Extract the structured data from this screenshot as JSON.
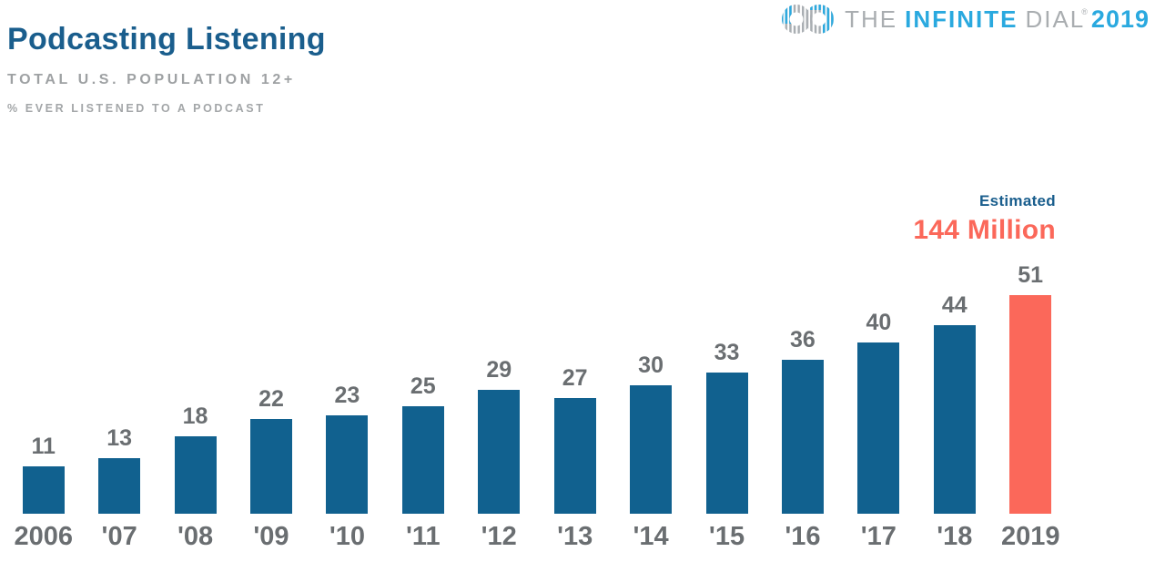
{
  "header": {
    "title": "Podcasting Listening",
    "subtitle": "TOTAL U.S. POPULATION 12+",
    "note": "% EVER LISTENED TO A PODCAST"
  },
  "logo": {
    "word_the": "THE",
    "word_infinite": "INFINITE",
    "word_dial": "DIAL",
    "registered": "®",
    "year": "2019",
    "accent_color": "#2AA9DF",
    "gray_color": "#A9ADB0"
  },
  "annotation": {
    "label": "Estimated",
    "value": "144 Million",
    "label_color": "#1A5E8D",
    "value_color": "#FB685A"
  },
  "chart_data": {
    "type": "bar",
    "title": "Podcasting Listening",
    "subtitle": "Total U.S. Population 12+",
    "ylabel": "% ever listened to a podcast",
    "categories": [
      "2006",
      "'07",
      "'08",
      "'09",
      "'10",
      "'11",
      "'12",
      "'13",
      "'14",
      "'15",
      "'16",
      "'17",
      "'18",
      "2019"
    ],
    "values": [
      11,
      13,
      18,
      22,
      23,
      25,
      29,
      27,
      30,
      33,
      36,
      40,
      44,
      51
    ],
    "highlight_index": 13,
    "bar_colors": {
      "default": "#11618F",
      "highlight": "#FB685A"
    },
    "value_label_color": "#6A6E71",
    "axis_label_color": "#6A6E71",
    "ylim": [
      0,
      55
    ],
    "grid": false,
    "value_labels": true,
    "legend": "none"
  }
}
